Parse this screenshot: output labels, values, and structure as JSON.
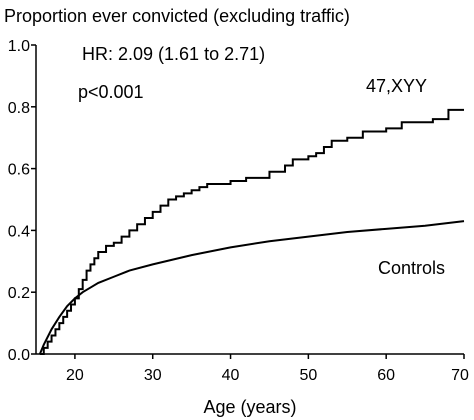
{
  "chart_data": {
    "type": "line",
    "title": "Proportion ever convicted (excluding traffic)",
    "xlabel": "Age (years)",
    "ylabel": "",
    "xlim": [
      15,
      70
    ],
    "ylim": [
      0,
      1.0
    ],
    "xticks": [
      "20",
      "30",
      "40",
      "50",
      "60",
      "70"
    ],
    "xtick_values": [
      20,
      30,
      40,
      50,
      60,
      70
    ],
    "yticks": [
      "0.0",
      "0.2",
      "0.4",
      "0.6",
      "0.8",
      "1.0"
    ],
    "ytick_values": [
      0.0,
      0.2,
      0.4,
      0.6,
      0.8,
      1.0
    ],
    "grid": false,
    "annotations": {
      "hr": "HR: 2.09 (1.61 to 2.71)",
      "p": "p<0.001"
    },
    "series": [
      {
        "name": "47,XYY",
        "step": true,
        "x": [
          15.5,
          16,
          16.5,
          17,
          17.5,
          18,
          18.5,
          19,
          19.5,
          20,
          20.5,
          21,
          21.5,
          22,
          22.5,
          23,
          24,
          25,
          26,
          27,
          28,
          29,
          30,
          31,
          32,
          33,
          34,
          35,
          36,
          37,
          38,
          40,
          42,
          45,
          47,
          48,
          50,
          51,
          52,
          53,
          55,
          57,
          60,
          62,
          64,
          66,
          68,
          70
        ],
        "values": [
          0.0,
          0.02,
          0.04,
          0.06,
          0.08,
          0.1,
          0.12,
          0.14,
          0.16,
          0.18,
          0.21,
          0.24,
          0.27,
          0.29,
          0.31,
          0.33,
          0.35,
          0.36,
          0.38,
          0.4,
          0.42,
          0.44,
          0.46,
          0.48,
          0.5,
          0.51,
          0.52,
          0.53,
          0.54,
          0.55,
          0.55,
          0.56,
          0.57,
          0.59,
          0.61,
          0.63,
          0.64,
          0.65,
          0.67,
          0.69,
          0.7,
          0.72,
          0.73,
          0.75,
          0.75,
          0.76,
          0.79,
          0.79
        ]
      },
      {
        "name": "Controls",
        "step": false,
        "x": [
          15.5,
          16,
          17,
          18,
          19,
          20,
          21,
          22,
          23,
          25,
          27,
          30,
          35,
          40,
          45,
          50,
          55,
          60,
          65,
          70
        ],
        "values": [
          0.0,
          0.03,
          0.08,
          0.12,
          0.155,
          0.18,
          0.2,
          0.215,
          0.23,
          0.25,
          0.27,
          0.29,
          0.32,
          0.345,
          0.365,
          0.38,
          0.395,
          0.405,
          0.415,
          0.43
        ]
      }
    ]
  }
}
